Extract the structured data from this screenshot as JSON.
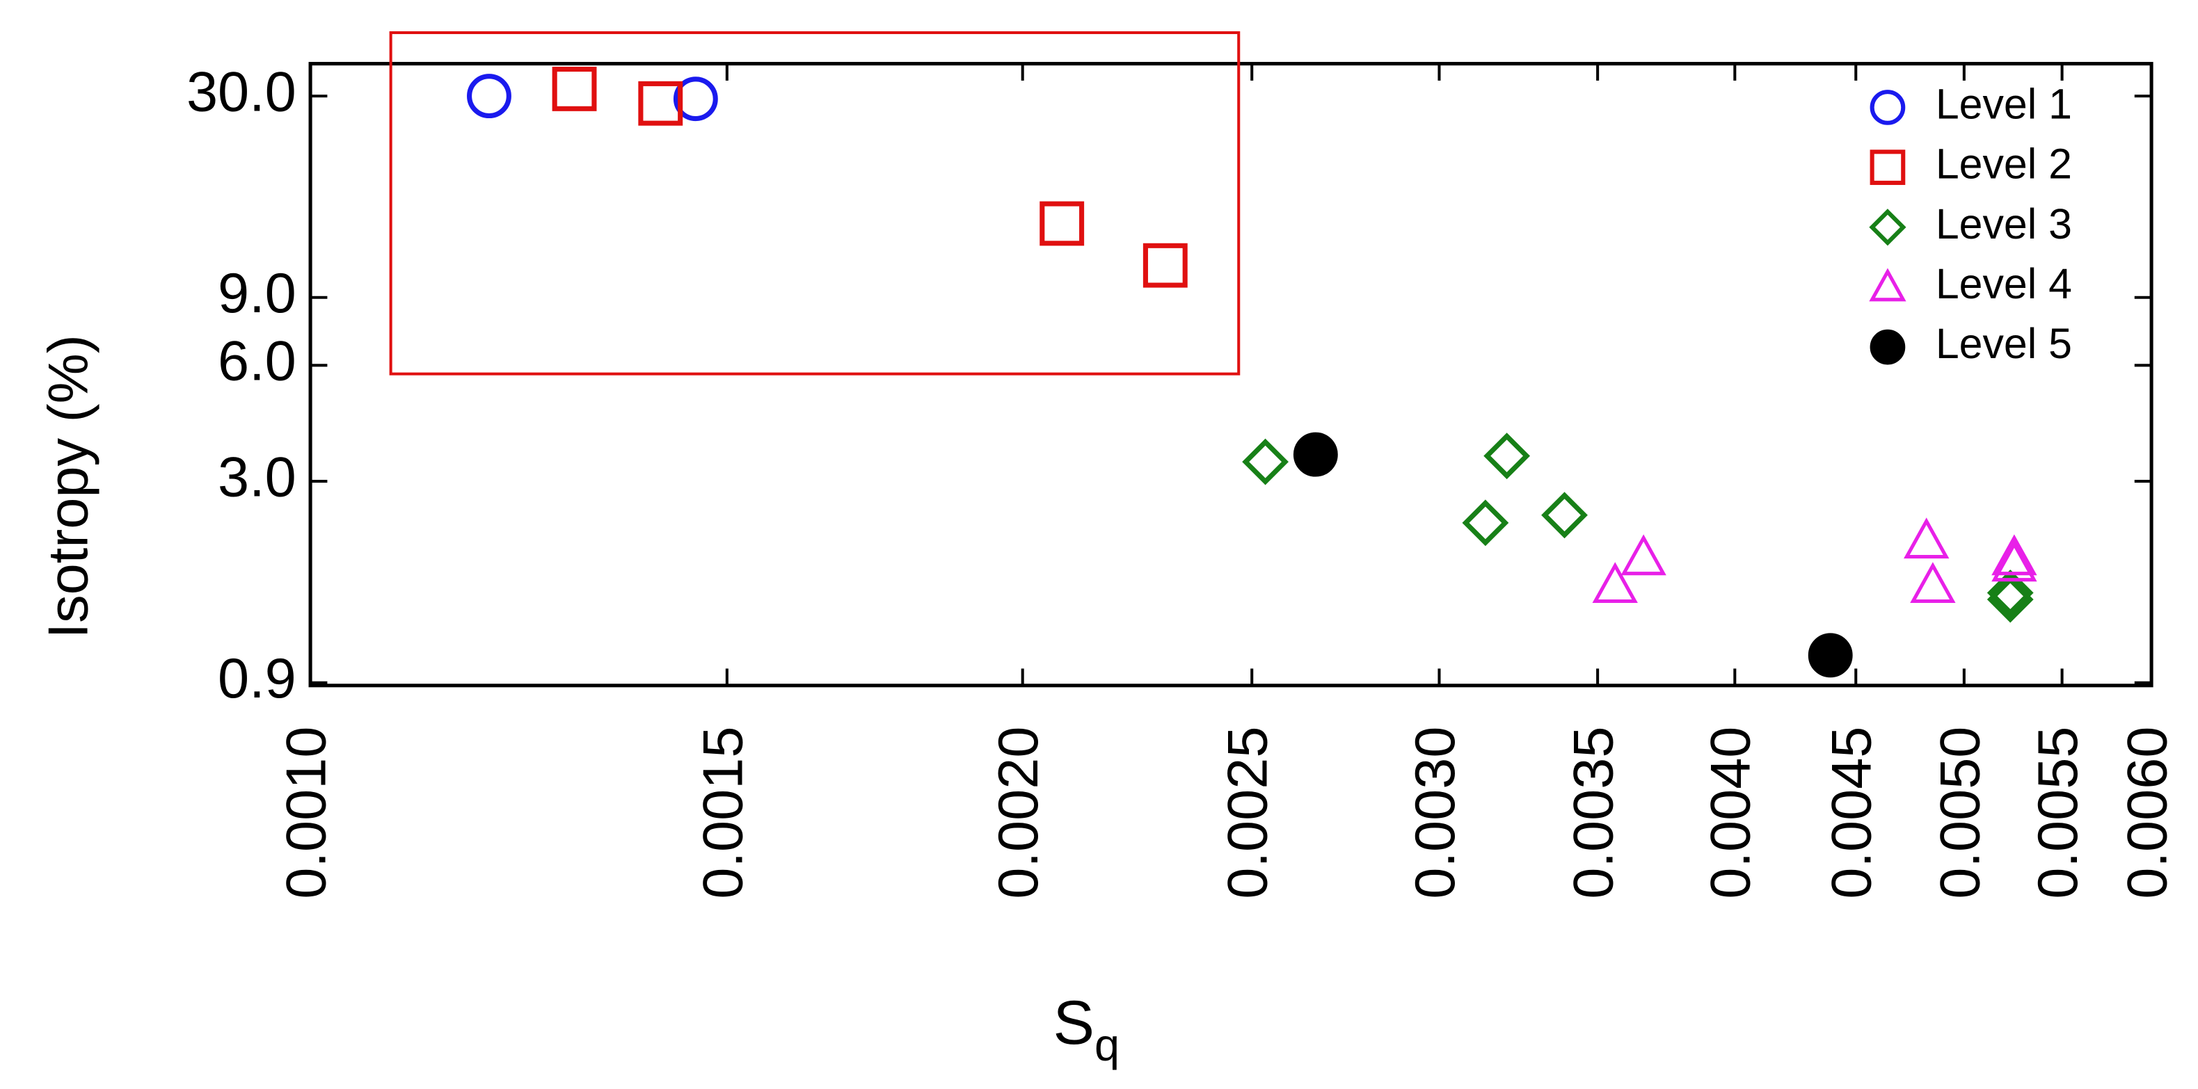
{
  "chart_data": {
    "type": "scatter",
    "x_label": {
      "text": "S",
      "subscript": "q"
    },
    "y_label": "Isotropy (%)",
    "x_scale": "log",
    "y_scale": "log",
    "xlim": [
      0.001,
      0.006
    ],
    "xticks": [
      {
        "value": 0.001,
        "label": "0.0010"
      },
      {
        "value": 0.0015,
        "label": "0.0015"
      },
      {
        "value": 0.002,
        "label": "0.0020"
      },
      {
        "value": 0.0025,
        "label": "0.0025"
      },
      {
        "value": 0.003,
        "label": "0.0030"
      },
      {
        "value": 0.0035,
        "label": "0.0035"
      },
      {
        "value": 0.004,
        "label": "0.0040"
      },
      {
        "value": 0.0045,
        "label": "0.0045"
      },
      {
        "value": 0.005,
        "label": "0.0050"
      },
      {
        "value": 0.0055,
        "label": "0.0055"
      },
      {
        "value": 0.006,
        "label": "0.0060"
      }
    ],
    "ylim": [
      0.885,
      36.4
    ],
    "yticks": [
      0.9,
      {
        "value": 3,
        "label": "3.0"
      },
      {
        "value": 6,
        "label": "6.0"
      },
      {
        "value": 9,
        "label": "9.0"
      },
      {
        "value": 30,
        "label": "30.0"
      }
    ],
    "legend": "upper right",
    "series": [
      {
        "name": "Level 1",
        "color": "#1a1aee",
        "marker": "circle",
        "x": [
          0.00119,
          0.001455
        ],
        "values": [
          30,
          29.5
        ]
      },
      {
        "name": "Level 2",
        "color": "#e01010",
        "marker": "square",
        "x": [
          0.001293,
          0.001406,
          0.002078,
          0.002298
        ],
        "values": [
          31.3,
          28.7,
          14.0,
          10.9
        ]
      },
      {
        "name": "Level 3",
        "color": "#178017",
        "marker": "diamond",
        "x": [
          0.002533,
          0.003204,
          0.003138,
          0.003389,
          0.00523,
          0.00523
        ],
        "values": [
          3.37,
          3.49,
          2.34,
          2.45,
          1.54,
          1.48
        ]
      },
      {
        "name": "Level 4",
        "color": "#e820e8",
        "marker": "triangle",
        "x": [
          0.00356,
          0.00366,
          0.00482,
          0.00485,
          0.00525,
          0.00525
        ],
        "values": [
          1.61,
          1.9,
          2.1,
          1.61,
          1.9,
          1.83
        ]
      },
      {
        "name": "Level 5",
        "color": "#000000",
        "marker": "filled-circle",
        "x": [
          0.00266,
          0.00439
        ],
        "values": [
          3.52,
          1.06
        ]
      }
    ]
  }
}
